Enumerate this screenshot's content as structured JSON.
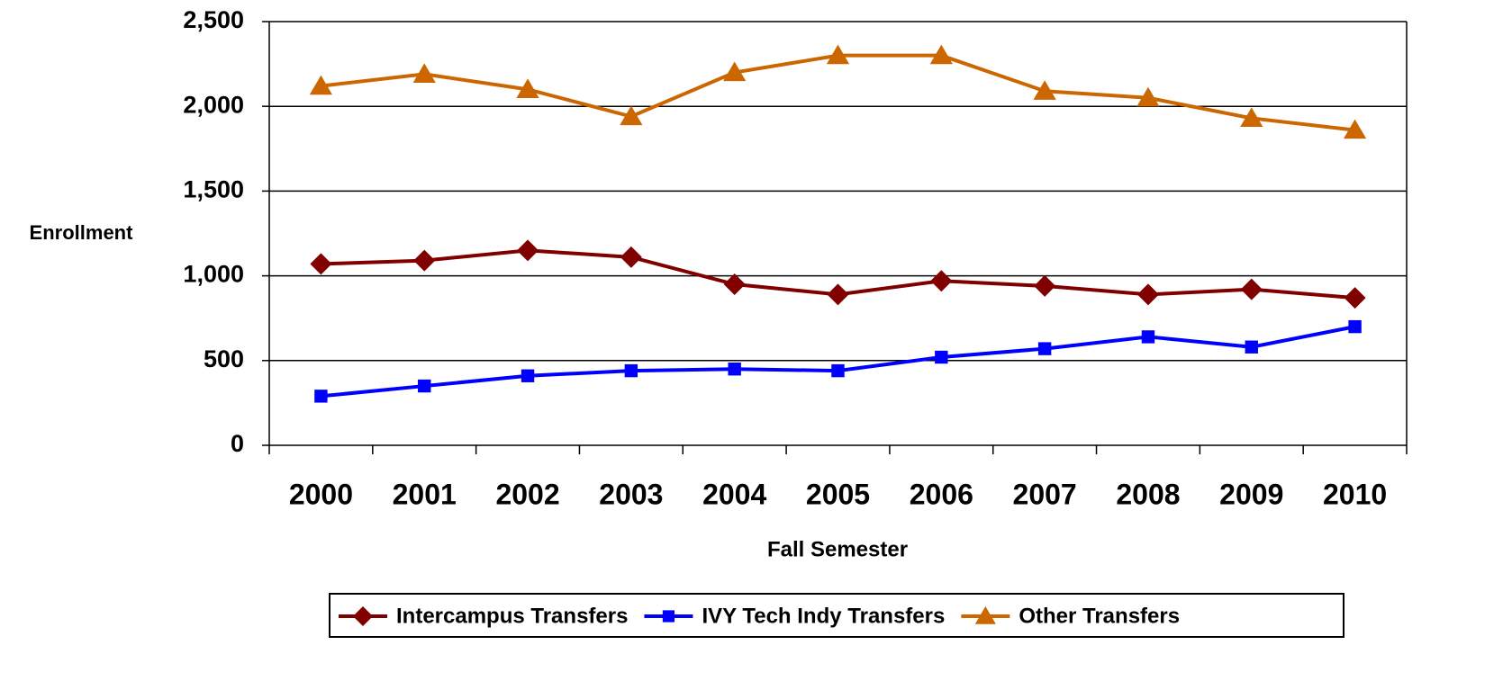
{
  "chart_data": {
    "type": "line",
    "x_label": "Fall Semester",
    "y_label": "Enrollment",
    "categories": [
      "2000",
      "2001",
      "2002",
      "2003",
      "2004",
      "2005",
      "2006",
      "2007",
      "2008",
      "2009",
      "2010"
    ],
    "series": [
      {
        "name": "Intercampus Transfers",
        "color": "#800000",
        "marker": "diamond",
        "values": [
          1070,
          1090,
          1150,
          1110,
          950,
          890,
          970,
          940,
          890,
          920,
          870
        ]
      },
      {
        "name": "IVY Tech Indy Transfers",
        "color": "#0000ff",
        "marker": "square",
        "values": [
          290,
          350,
          410,
          440,
          450,
          440,
          520,
          570,
          640,
          580,
          700
        ]
      },
      {
        "name": "Other Transfers",
        "color": "#cc6600",
        "marker": "triangle",
        "values": [
          2120,
          2190,
          2100,
          1940,
          2200,
          2300,
          2300,
          2090,
          2050,
          1930,
          1860
        ]
      }
    ],
    "ylim": [
      0,
      2500
    ],
    "yticks": [
      0,
      500,
      {
        "value": 1000,
        "label": "1,000"
      },
      {
        "value": 1500,
        "label": "1,500"
      },
      {
        "value": 2000,
        "label": "2,000"
      },
      {
        "value": 2500,
        "label": "2,500"
      }
    ],
    "grid": true,
    "legend": "bottom"
  }
}
